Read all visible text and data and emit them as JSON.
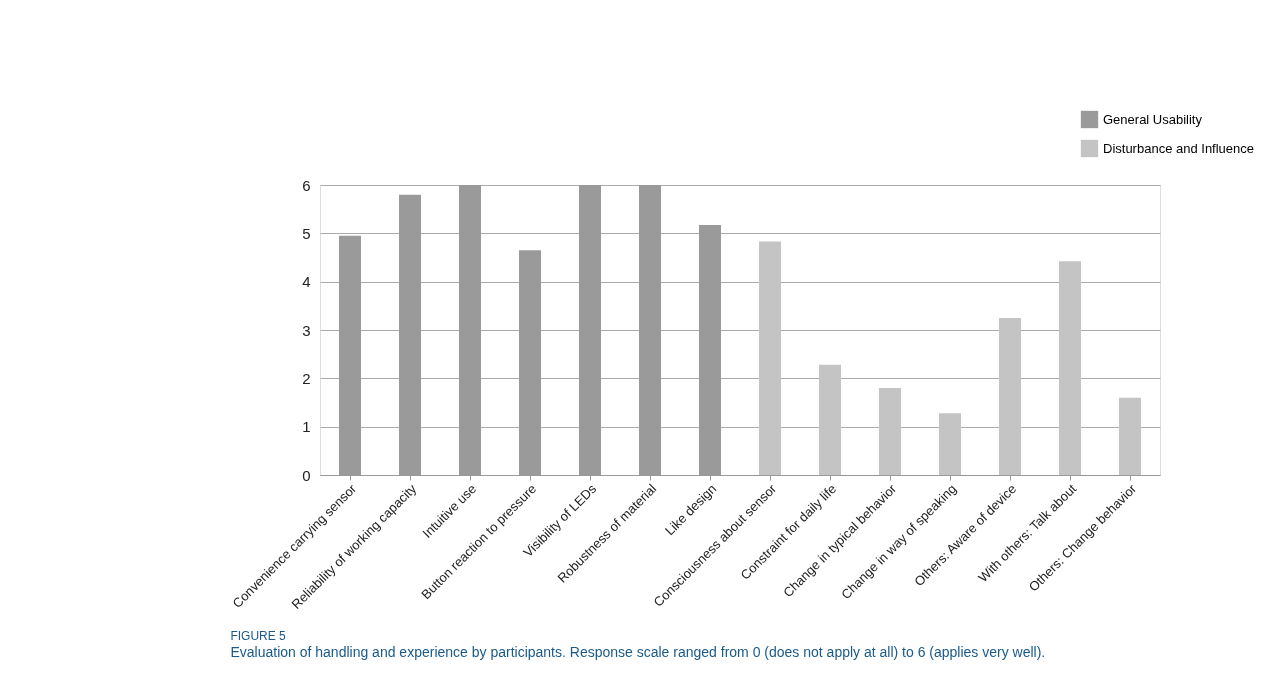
{
  "chart_data": {
    "type": "bar",
    "title": "FIGURE 5",
    "subtitle": "Evaluation of handling and experience by participants. Response scale ranged from 0 (does not apply at all) to 6 (applies very well).",
    "categories": [
      "Convenience carrying sensor",
      "Reliability of working capacity",
      "Intuitive use",
      "Button reaction to pressure",
      "Visibility of LEDs",
      "Robustness of material",
      "Like design",
      "Consciousness about sensor",
      "Constraint for daily life",
      "Change in typical behavior",
      "Change in way of speaking",
      "Others: Aware of device",
      "With others: Talk about",
      "Others: Change behavior"
    ],
    "series": [
      {
        "name": "General Usability",
        "color": "#9a9a9a",
        "values": [
          4.95,
          5.8,
          6,
          4.65,
          6,
          6,
          5.17,
          null,
          null,
          null,
          null,
          null,
          null,
          null
        ]
      },
      {
        "name": "Disturbance and Influence",
        "color": "#c4c4c4",
        "values": [
          null,
          null,
          null,
          null,
          null,
          null,
          null,
          4.83,
          2.28,
          1.8,
          1.28,
          3.25,
          4.42,
          1.6
        ]
      }
    ],
    "ylim": [
      0,
      6
    ],
    "yticks": [
      0,
      1,
      2,
      3,
      4,
      5,
      6
    ],
    "grid": "y",
    "legend": "top right"
  }
}
